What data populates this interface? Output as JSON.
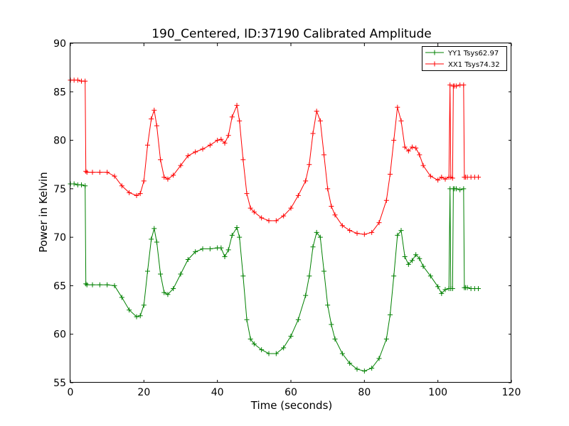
{
  "chart_data": {
    "type": "line",
    "title": "190_Centered, ID:37190 Calibrated Amplitude",
    "xlabel": "Time (seconds)",
    "ylabel": "Power in Kelvin",
    "xlim": [
      0,
      120
    ],
    "ylim": [
      55,
      90
    ],
    "xticks": [
      "0",
      "20",
      "40",
      "60",
      "80",
      "100",
      "120"
    ],
    "yticks": [
      "55",
      "60",
      "65",
      "70",
      "75",
      "80",
      "85",
      "90"
    ],
    "grid": false,
    "legend_position": "top-right",
    "marker": "+",
    "series": [
      {
        "name": "YY1 Tsys62.97",
        "color": "#008000",
        "x": [
          0,
          1,
          2,
          3,
          4,
          4.2,
          4.5,
          6,
          8,
          10,
          12,
          14,
          16,
          18,
          19,
          20,
          21,
          22,
          22.8,
          23.5,
          24.5,
          25.5,
          26.5,
          28,
          30,
          32,
          34,
          36,
          38,
          40,
          41,
          42,
          43,
          44,
          45.3,
          46,
          47,
          48,
          49,
          50,
          52,
          54,
          56,
          58,
          60,
          62,
          64,
          65,
          66,
          67,
          68,
          69,
          70,
          71,
          72,
          74,
          76,
          78,
          80,
          82,
          84,
          86,
          87,
          88,
          89,
          90,
          91,
          92,
          93,
          94,
          95,
          96,
          98,
          100,
          101,
          102,
          103,
          103.3,
          103.5,
          104,
          104.2,
          104.5,
          105,
          106,
          107,
          107.2,
          107.5,
          108,
          109,
          110,
          111
        ],
        "y": [
          75.5,
          75.5,
          75.4,
          75.4,
          75.3,
          65.2,
          65.1,
          65.1,
          65.1,
          65.1,
          65.0,
          63.8,
          62.5,
          61.8,
          61.9,
          63.0,
          66.5,
          69.8,
          70.9,
          69.5,
          66.2,
          64.3,
          64.1,
          64.7,
          66.2,
          67.7,
          68.5,
          68.8,
          68.8,
          68.9,
          68.9,
          68.0,
          68.7,
          70.2,
          71.0,
          70.0,
          66.0,
          61.5,
          59.5,
          59.0,
          58.4,
          58.0,
          58.0,
          58.6,
          59.8,
          61.5,
          64.0,
          66.0,
          69.0,
          70.5,
          70.0,
          66.5,
          63.0,
          61.0,
          59.5,
          58.0,
          57.0,
          56.4,
          56.2,
          56.5,
          57.5,
          59.5,
          62.0,
          66.0,
          70.2,
          70.7,
          68.0,
          67.2,
          67.6,
          68.2,
          67.8,
          67.0,
          66.0,
          64.9,
          64.2,
          64.6,
          64.7,
          75.0,
          64.7,
          64.7,
          75.0,
          75.0,
          75.0,
          74.9,
          75.0,
          64.8,
          64.8,
          64.8,
          64.7,
          64.7,
          64.7
        ]
      },
      {
        "name": "XX1 Tsys74.32",
        "color": "#ff0000",
        "x": [
          0,
          1,
          2,
          3,
          4,
          4.2,
          4.5,
          6,
          8,
          10,
          12,
          14,
          16,
          18,
          19,
          20,
          21,
          22,
          22.8,
          23.5,
          24.5,
          25.5,
          26.5,
          28,
          30,
          32,
          34,
          36,
          38,
          40,
          41,
          42,
          43,
          44,
          45.3,
          46,
          47,
          48,
          49,
          50,
          52,
          54,
          56,
          58,
          60,
          62,
          64,
          65,
          66,
          67,
          68,
          69,
          70,
          71,
          72,
          74,
          76,
          78,
          80,
          82,
          84,
          86,
          87,
          88,
          89,
          90,
          91,
          92,
          93,
          94,
          95,
          96,
          98,
          100,
          101,
          102,
          103,
          103.3,
          103.5,
          104,
          104.2,
          104.5,
          105,
          106,
          107,
          107.2,
          107.5,
          108,
          109,
          110,
          111
        ],
        "y": [
          86.2,
          86.2,
          86.2,
          86.1,
          86.1,
          76.8,
          76.7,
          76.7,
          76.7,
          76.7,
          76.3,
          75.3,
          74.6,
          74.3,
          74.5,
          75.8,
          79.5,
          82.2,
          83.1,
          81.5,
          78.0,
          76.2,
          76.0,
          76.4,
          77.4,
          78.4,
          78.8,
          79.1,
          79.5,
          80.0,
          80.1,
          79.7,
          80.5,
          82.4,
          83.6,
          82.0,
          78.0,
          74.5,
          73.0,
          72.6,
          72.0,
          71.7,
          71.7,
          72.2,
          73.0,
          74.3,
          75.8,
          77.5,
          80.7,
          83.0,
          82.0,
          78.5,
          75.0,
          73.2,
          72.3,
          71.2,
          70.7,
          70.4,
          70.3,
          70.5,
          71.5,
          73.8,
          76.5,
          80.0,
          83.4,
          82.0,
          79.3,
          78.9,
          79.3,
          79.2,
          78.5,
          77.4,
          76.3,
          75.9,
          76.2,
          76.0,
          76.2,
          85.7,
          76.2,
          76.1,
          85.6,
          85.6,
          85.6,
          85.7,
          85.7,
          76.2,
          76.2,
          76.2,
          76.2,
          76.2,
          76.2
        ]
      }
    ]
  }
}
